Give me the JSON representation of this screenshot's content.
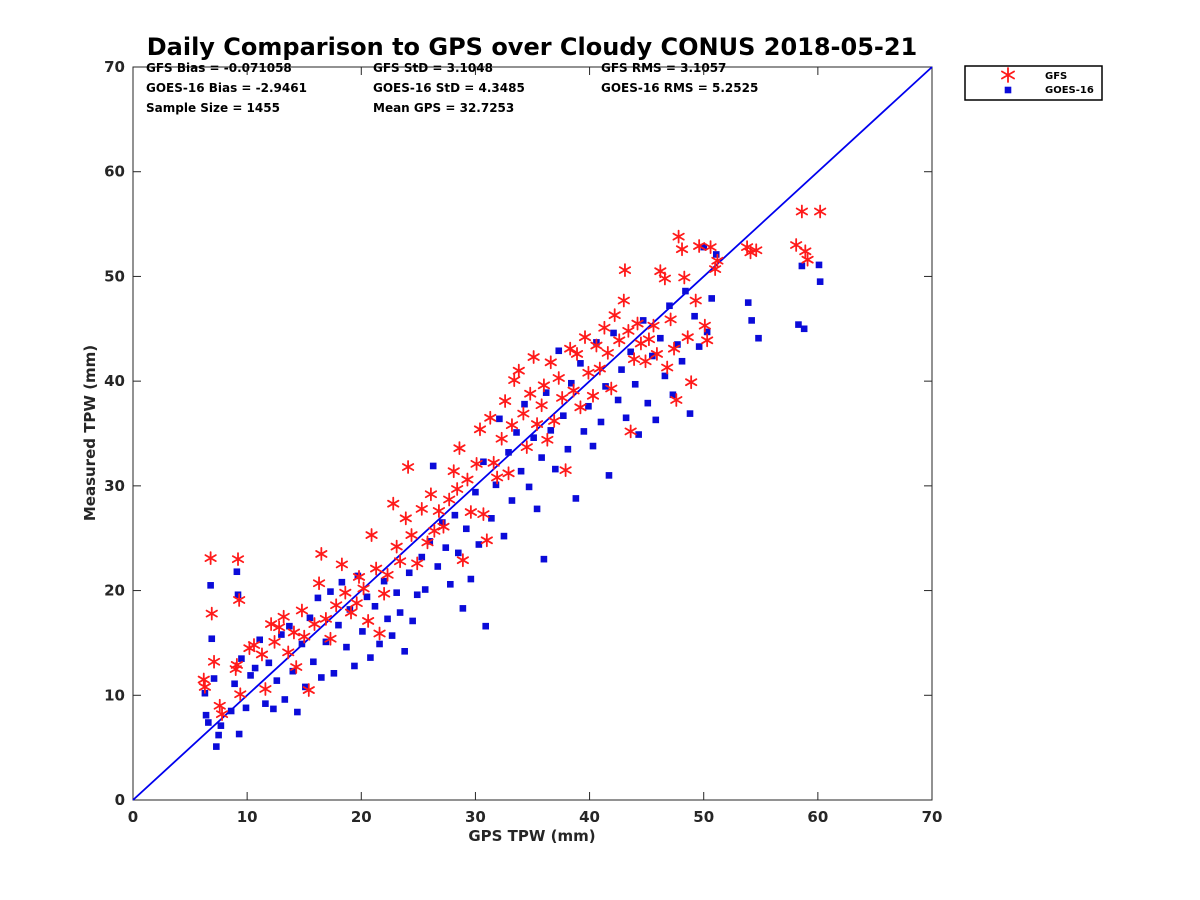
{
  "chart_data": {
    "type": "scatter",
    "title": "Daily Comparison to GPS over Cloudy CONUS 2018-05-21",
    "xlabel": "GPS TPW (mm)",
    "ylabel": "Measured TPW (mm)",
    "xlim": [
      0,
      70
    ],
    "ylim": [
      0,
      70
    ],
    "xticks": [
      "0",
      "10",
      "20",
      "30",
      "40",
      "50",
      "60",
      "70"
    ],
    "yticks": [
      "0",
      "10",
      "20",
      "30",
      "40",
      "50",
      "60",
      "70"
    ],
    "grid": false,
    "legend_position": "outside-top-right",
    "stats": {
      "gfs_bias": "GFS Bias = -0.071058",
      "gfs_std": "GFS StD = 3.1048",
      "gfs_rms": "GFS RMS = 3.1057",
      "goes_bias": "GOES-16 Bias = -2.9461",
      "goes_std": "GOES-16 StD = 4.3485",
      "goes_rms": "GOES-16 RMS = 5.2525",
      "sample_size": "Sample Size = 1455",
      "mean_gps": "Mean GPS = 32.7253"
    },
    "reference_line": {
      "x": [
        0,
        70
      ],
      "y": [
        0,
        70
      ],
      "color": "#0000ee"
    },
    "series": [
      {
        "name": "GFS",
        "marker": "asterisk",
        "color": "#ff1a1a",
        "points": [
          [
            6.2,
            11.5
          ],
          [
            6.3,
            10.8
          ],
          [
            6.8,
            23.1
          ],
          [
            6.9,
            17.8
          ],
          [
            7.1,
            13.2
          ],
          [
            7.6,
            9.0
          ],
          [
            7.8,
            8.2
          ],
          [
            9.0,
            12.5
          ],
          [
            9.1,
            12.9
          ],
          [
            9.2,
            23.0
          ],
          [
            9.3,
            19.1
          ],
          [
            9.4,
            10.1
          ],
          [
            10.2,
            14.5
          ],
          [
            10.6,
            14.8
          ],
          [
            11.3,
            13.9
          ],
          [
            11.6,
            10.6
          ],
          [
            12.1,
            16.8
          ],
          [
            12.4,
            15.1
          ],
          [
            12.8,
            16.5
          ],
          [
            13.2,
            17.5
          ],
          [
            13.6,
            14.1
          ],
          [
            14.1,
            16.0
          ],
          [
            14.3,
            12.7
          ],
          [
            14.8,
            18.1
          ],
          [
            15.0,
            15.6
          ],
          [
            15.4,
            10.5
          ],
          [
            15.9,
            16.8
          ],
          [
            16.3,
            20.7
          ],
          [
            16.5,
            23.5
          ],
          [
            16.9,
            17.3
          ],
          [
            17.3,
            15.4
          ],
          [
            17.8,
            18.6
          ],
          [
            18.3,
            22.5
          ],
          [
            18.6,
            19.8
          ],
          [
            19.1,
            17.9
          ],
          [
            19.6,
            18.8
          ],
          [
            19.8,
            21.3
          ],
          [
            20.2,
            20.2
          ],
          [
            20.6,
            17.1
          ],
          [
            20.9,
            25.3
          ],
          [
            21.3,
            22.1
          ],
          [
            21.6,
            15.9
          ],
          [
            22.0,
            19.7
          ],
          [
            22.3,
            21.5
          ],
          [
            22.8,
            28.3
          ],
          [
            23.1,
            24.2
          ],
          [
            23.4,
            22.8
          ],
          [
            23.9,
            26.9
          ],
          [
            24.1,
            31.8
          ],
          [
            24.4,
            25.3
          ],
          [
            24.9,
            22.6
          ],
          [
            25.3,
            27.8
          ],
          [
            25.8,
            24.6
          ],
          [
            26.1,
            29.2
          ],
          [
            26.4,
            25.7
          ],
          [
            26.8,
            27.6
          ],
          [
            27.2,
            26.1
          ],
          [
            27.7,
            28.7
          ],
          [
            28.1,
            31.4
          ],
          [
            28.4,
            29.7
          ],
          [
            28.6,
            33.6
          ],
          [
            28.9,
            22.9
          ],
          [
            29.3,
            30.6
          ],
          [
            29.6,
            27.5
          ],
          [
            30.1,
            32.1
          ],
          [
            30.4,
            35.4
          ],
          [
            30.7,
            27.3
          ],
          [
            31.0,
            24.8
          ],
          [
            31.3,
            36.5
          ],
          [
            31.6,
            32.2
          ],
          [
            31.9,
            30.8
          ],
          [
            32.3,
            34.5
          ],
          [
            32.6,
            38.1
          ],
          [
            32.9,
            31.2
          ],
          [
            33.2,
            35.8
          ],
          [
            33.4,
            40.1
          ],
          [
            33.8,
            41.0
          ],
          [
            34.2,
            36.9
          ],
          [
            34.5,
            33.7
          ],
          [
            34.8,
            38.8
          ],
          [
            35.1,
            42.3
          ],
          [
            35.4,
            35.9
          ],
          [
            35.8,
            37.7
          ],
          [
            36.0,
            39.6
          ],
          [
            36.3,
            34.4
          ],
          [
            36.6,
            41.8
          ],
          [
            36.9,
            36.2
          ],
          [
            37.3,
            40.3
          ],
          [
            37.6,
            38.4
          ],
          [
            37.9,
            31.5
          ],
          [
            38.3,
            43.1
          ],
          [
            38.6,
            39.1
          ],
          [
            38.9,
            42.6
          ],
          [
            39.2,
            37.5
          ],
          [
            39.6,
            44.2
          ],
          [
            39.9,
            40.8
          ],
          [
            40.3,
            38.6
          ],
          [
            40.6,
            43.4
          ],
          [
            40.9,
            41.2
          ],
          [
            41.3,
            45.1
          ],
          [
            41.6,
            42.7
          ],
          [
            41.9,
            39.3
          ],
          [
            42.2,
            46.3
          ],
          [
            42.6,
            43.9
          ],
          [
            43.0,
            47.7
          ],
          [
            43.1,
            50.6
          ],
          [
            43.4,
            44.8
          ],
          [
            43.6,
            35.2
          ],
          [
            43.9,
            42.1
          ],
          [
            44.2,
            45.5
          ],
          [
            44.5,
            43.6
          ],
          [
            44.9,
            41.9
          ],
          [
            45.2,
            44.0
          ],
          [
            45.6,
            45.3
          ],
          [
            45.9,
            42.6
          ],
          [
            46.2,
            50.5
          ],
          [
            46.6,
            49.8
          ],
          [
            46.8,
            41.3
          ],
          [
            47.1,
            45.9
          ],
          [
            47.4,
            43.1
          ],
          [
            47.6,
            38.2
          ],
          [
            47.8,
            53.8
          ],
          [
            48.1,
            52.6
          ],
          [
            48.3,
            49.9
          ],
          [
            48.6,
            44.2
          ],
          [
            48.9,
            39.9
          ],
          [
            49.3,
            47.7
          ],
          [
            49.6,
            52.9
          ],
          [
            50.1,
            45.3
          ],
          [
            50.3,
            43.9
          ],
          [
            50.6,
            52.8
          ],
          [
            51.0,
            50.7
          ],
          [
            51.2,
            51.5
          ],
          [
            53.8,
            52.8
          ],
          [
            54.1,
            52.3
          ],
          [
            54.6,
            52.5
          ],
          [
            58.1,
            53.0
          ],
          [
            58.6,
            56.2
          ],
          [
            58.9,
            52.4
          ],
          [
            59.1,
            51.6
          ],
          [
            60.2,
            56.2
          ]
        ]
      },
      {
        "name": "GOES-16",
        "marker": "square",
        "color": "#0b0bd9",
        "points": [
          [
            6.3,
            10.2
          ],
          [
            6.4,
            8.1
          ],
          [
            6.6,
            7.4
          ],
          [
            6.8,
            20.5
          ],
          [
            6.9,
            15.4
          ],
          [
            7.1,
            11.6
          ],
          [
            7.3,
            5.1
          ],
          [
            7.5,
            6.2
          ],
          [
            7.7,
            7.1
          ],
          [
            8.6,
            8.5
          ],
          [
            8.9,
            11.1
          ],
          [
            9.1,
            21.8
          ],
          [
            9.2,
            19.6
          ],
          [
            9.3,
            6.3
          ],
          [
            9.5,
            13.5
          ],
          [
            9.9,
            8.8
          ],
          [
            10.3,
            11.9
          ],
          [
            10.7,
            12.6
          ],
          [
            11.1,
            15.3
          ],
          [
            11.6,
            9.2
          ],
          [
            11.9,
            13.1
          ],
          [
            12.3,
            8.7
          ],
          [
            12.6,
            11.4
          ],
          [
            13.0,
            15.8
          ],
          [
            13.3,
            9.6
          ],
          [
            13.7,
            16.6
          ],
          [
            14.0,
            12.3
          ],
          [
            14.4,
            8.4
          ],
          [
            14.8,
            14.9
          ],
          [
            15.1,
            10.8
          ],
          [
            15.5,
            17.4
          ],
          [
            15.8,
            13.2
          ],
          [
            16.2,
            19.3
          ],
          [
            16.5,
            11.7
          ],
          [
            16.9,
            15.1
          ],
          [
            17.3,
            19.9
          ],
          [
            17.6,
            12.1
          ],
          [
            18.0,
            16.7
          ],
          [
            18.3,
            20.8
          ],
          [
            18.7,
            14.6
          ],
          [
            19.0,
            18.2
          ],
          [
            19.4,
            12.8
          ],
          [
            19.7,
            21.4
          ],
          [
            20.1,
            16.1
          ],
          [
            20.5,
            19.4
          ],
          [
            20.8,
            13.6
          ],
          [
            21.2,
            18.5
          ],
          [
            21.6,
            14.9
          ],
          [
            22.0,
            20.9
          ],
          [
            22.3,
            17.3
          ],
          [
            22.7,
            15.7
          ],
          [
            23.1,
            19.8
          ],
          [
            23.4,
            17.9
          ],
          [
            23.8,
            14.2
          ],
          [
            24.2,
            21.7
          ],
          [
            24.5,
            17.1
          ],
          [
            24.9,
            19.6
          ],
          [
            25.3,
            23.2
          ],
          [
            25.6,
            20.1
          ],
          [
            26.0,
            24.7
          ],
          [
            26.3,
            31.9
          ],
          [
            26.7,
            22.3
          ],
          [
            27.1,
            26.5
          ],
          [
            27.4,
            24.1
          ],
          [
            27.8,
            20.6
          ],
          [
            28.2,
            27.2
          ],
          [
            28.5,
            23.6
          ],
          [
            28.9,
            18.3
          ],
          [
            29.2,
            25.9
          ],
          [
            29.6,
            21.1
          ],
          [
            30.0,
            29.4
          ],
          [
            30.3,
            24.4
          ],
          [
            30.7,
            32.3
          ],
          [
            30.9,
            16.6
          ],
          [
            31.4,
            26.9
          ],
          [
            31.8,
            30.1
          ],
          [
            32.1,
            36.4
          ],
          [
            32.5,
            25.2
          ],
          [
            32.9,
            33.2
          ],
          [
            33.2,
            28.6
          ],
          [
            33.6,
            35.1
          ],
          [
            34.0,
            31.4
          ],
          [
            34.3,
            37.8
          ],
          [
            34.7,
            29.9
          ],
          [
            35.1,
            34.6
          ],
          [
            35.4,
            27.8
          ],
          [
            35.8,
            32.7
          ],
          [
            36.0,
            23.0
          ],
          [
            36.2,
            38.9
          ],
          [
            36.6,
            35.3
          ],
          [
            37.0,
            31.6
          ],
          [
            37.3,
            42.9
          ],
          [
            37.7,
            36.7
          ],
          [
            38.1,
            33.5
          ],
          [
            38.4,
            39.8
          ],
          [
            38.8,
            28.8
          ],
          [
            39.2,
            41.7
          ],
          [
            39.5,
            35.2
          ],
          [
            39.9,
            37.6
          ],
          [
            40.3,
            33.8
          ],
          [
            40.6,
            43.7
          ],
          [
            41.0,
            36.1
          ],
          [
            41.4,
            39.5
          ],
          [
            41.7,
            31.0
          ],
          [
            42.1,
            44.6
          ],
          [
            42.5,
            38.2
          ],
          [
            42.8,
            41.1
          ],
          [
            43.2,
            36.5
          ],
          [
            43.6,
            42.8
          ],
          [
            44.0,
            39.7
          ],
          [
            44.3,
            34.9
          ],
          [
            44.7,
            45.8
          ],
          [
            45.1,
            37.9
          ],
          [
            45.5,
            42.4
          ],
          [
            45.8,
            36.3
          ],
          [
            46.2,
            44.1
          ],
          [
            46.6,
            40.5
          ],
          [
            47.0,
            47.2
          ],
          [
            47.3,
            38.7
          ],
          [
            47.7,
            43.5
          ],
          [
            48.1,
            41.9
          ],
          [
            48.4,
            48.6
          ],
          [
            48.8,
            36.9
          ],
          [
            49.2,
            46.2
          ],
          [
            49.6,
            43.3
          ],
          [
            50.0,
            52.8
          ],
          [
            50.3,
            44.7
          ],
          [
            50.7,
            47.9
          ],
          [
            51.1,
            52.1
          ],
          [
            53.9,
            47.5
          ],
          [
            54.2,
            45.8
          ],
          [
            54.8,
            44.1
          ],
          [
            58.3,
            45.4
          ],
          [
            58.6,
            51.0
          ],
          [
            58.8,
            45.0
          ],
          [
            60.1,
            51.1
          ],
          [
            60.2,
            49.5
          ]
        ]
      }
    ]
  }
}
